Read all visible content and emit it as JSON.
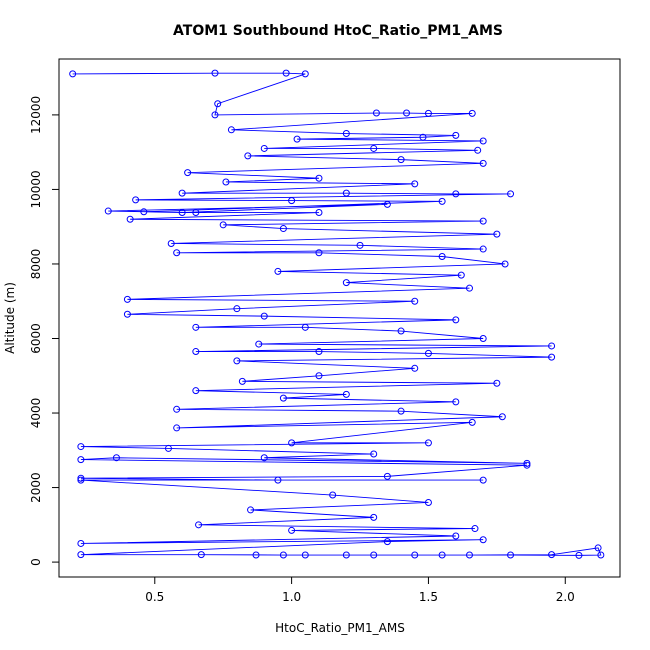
{
  "chart_data": {
    "type": "scatter",
    "title": "ATOM1 Southbound HtoC_Ratio_PM1_AMS",
    "xlabel": "HtoC_Ratio_PM1_AMS",
    "ylabel": "Altitude (m)",
    "xlim": [
      0.15,
      2.2
    ],
    "ylim": [
      -400,
      13500
    ],
    "xticks": [
      0.5,
      1.0,
      1.5,
      2.0
    ],
    "xtick_labels": [
      "0.5",
      "1.0",
      "1.5",
      "2.0"
    ],
    "yticks": [
      0,
      2000,
      4000,
      6000,
      8000,
      10000,
      12000
    ],
    "ytick_labels": [
      "0",
      "2000",
      "4000",
      "6000",
      "8000",
      "10000",
      "12000"
    ],
    "marker": "open-circle",
    "connected": true,
    "color": "#0000ff",
    "grid": false,
    "series": [
      {
        "points": [
          [
            0.2,
            13100
          ],
          [
            0.72,
            13120
          ],
          [
            0.98,
            13120
          ],
          [
            1.05,
            13100
          ],
          [
            0.73,
            12300
          ],
          [
            0.72,
            12000
          ],
          [
            1.31,
            12050
          ],
          [
            1.42,
            12050
          ],
          [
            1.5,
            12040
          ],
          [
            1.66,
            12040
          ],
          [
            0.78,
            11600
          ],
          [
            1.2,
            11500
          ],
          [
            1.6,
            11450
          ],
          [
            1.48,
            11400
          ],
          [
            1.02,
            11350
          ],
          [
            1.7,
            11300
          ],
          [
            0.9,
            11100
          ],
          [
            1.3,
            11100
          ],
          [
            1.68,
            11050
          ],
          [
            0.84,
            10900
          ],
          [
            1.4,
            10800
          ],
          [
            1.7,
            10700
          ],
          [
            0.62,
            10450
          ],
          [
            1.1,
            10300
          ],
          [
            0.76,
            10200
          ],
          [
            1.45,
            10150
          ],
          [
            0.6,
            9900
          ],
          [
            1.2,
            9900
          ],
          [
            1.6,
            9880
          ],
          [
            1.8,
            9880
          ],
          [
            0.43,
            9720
          ],
          [
            1.0,
            9700
          ],
          [
            1.55,
            9680
          ],
          [
            0.46,
            9400
          ],
          [
            0.6,
            9380
          ],
          [
            1.35,
            9600
          ],
          [
            0.33,
            9420
          ],
          [
            0.65,
            9380
          ],
          [
            1.1,
            9380
          ],
          [
            0.41,
            9200
          ],
          [
            1.7,
            9150
          ],
          [
            0.75,
            9050
          ],
          [
            0.97,
            8950
          ],
          [
            1.75,
            8800
          ],
          [
            0.56,
            8550
          ],
          [
            1.25,
            8500
          ],
          [
            1.7,
            8400
          ],
          [
            0.58,
            8300
          ],
          [
            1.1,
            8300
          ],
          [
            1.55,
            8200
          ],
          [
            1.78,
            8000
          ],
          [
            0.95,
            7800
          ],
          [
            1.62,
            7700
          ],
          [
            1.2,
            7500
          ],
          [
            1.65,
            7350
          ],
          [
            0.4,
            7050
          ],
          [
            1.45,
            7000
          ],
          [
            0.8,
            6800
          ],
          [
            0.4,
            6650
          ],
          [
            0.9,
            6600
          ],
          [
            1.6,
            6500
          ],
          [
            0.65,
            6300
          ],
          [
            1.05,
            6300
          ],
          [
            1.4,
            6200
          ],
          [
            1.7,
            6000
          ],
          [
            0.88,
            5850
          ],
          [
            1.95,
            5800
          ],
          [
            0.65,
            5650
          ],
          [
            1.1,
            5650
          ],
          [
            1.5,
            5600
          ],
          [
            1.95,
            5500
          ],
          [
            0.8,
            5400
          ],
          [
            1.45,
            5200
          ],
          [
            1.1,
            5000
          ],
          [
            0.82,
            4850
          ],
          [
            1.75,
            4800
          ],
          [
            0.65,
            4600
          ],
          [
            1.2,
            4500
          ],
          [
            0.97,
            4400
          ],
          [
            1.6,
            4300
          ],
          [
            0.58,
            4100
          ],
          [
            1.4,
            4050
          ],
          [
            1.77,
            3900
          ],
          [
            0.58,
            3600
          ],
          [
            1.66,
            3750
          ],
          [
            1.0,
            3200
          ],
          [
            1.5,
            3200
          ],
          [
            0.23,
            3100
          ],
          [
            0.55,
            3050
          ],
          [
            1.3,
            2900
          ],
          [
            0.9,
            2800
          ],
          [
            1.86,
            2650
          ],
          [
            0.36,
            2800
          ],
          [
            0.23,
            2750
          ],
          [
            1.86,
            2600
          ],
          [
            1.35,
            2300
          ],
          [
            0.23,
            2250
          ],
          [
            0.95,
            2200
          ],
          [
            1.7,
            2200
          ],
          [
            0.23,
            2200
          ],
          [
            1.15,
            1800
          ],
          [
            1.5,
            1600
          ],
          [
            0.85,
            1400
          ],
          [
            1.3,
            1200
          ],
          [
            0.66,
            1000
          ],
          [
            1.67,
            900
          ],
          [
            1.0,
            850
          ],
          [
            1.6,
            700
          ],
          [
            0.23,
            500
          ],
          [
            1.7,
            600
          ],
          [
            1.35,
            550
          ],
          [
            0.23,
            200
          ],
          [
            0.67,
            200
          ],
          [
            0.97,
            190
          ],
          [
            1.2,
            190
          ],
          [
            1.45,
            190
          ],
          [
            1.65,
            190
          ],
          [
            1.95,
            200
          ],
          [
            2.12,
            380
          ],
          [
            2.13,
            190
          ],
          [
            2.05,
            180
          ],
          [
            1.8,
            190
          ],
          [
            1.55,
            190
          ],
          [
            1.3,
            190
          ],
          [
            1.05,
            190
          ],
          [
            0.87,
            190
          ]
        ]
      }
    ]
  }
}
